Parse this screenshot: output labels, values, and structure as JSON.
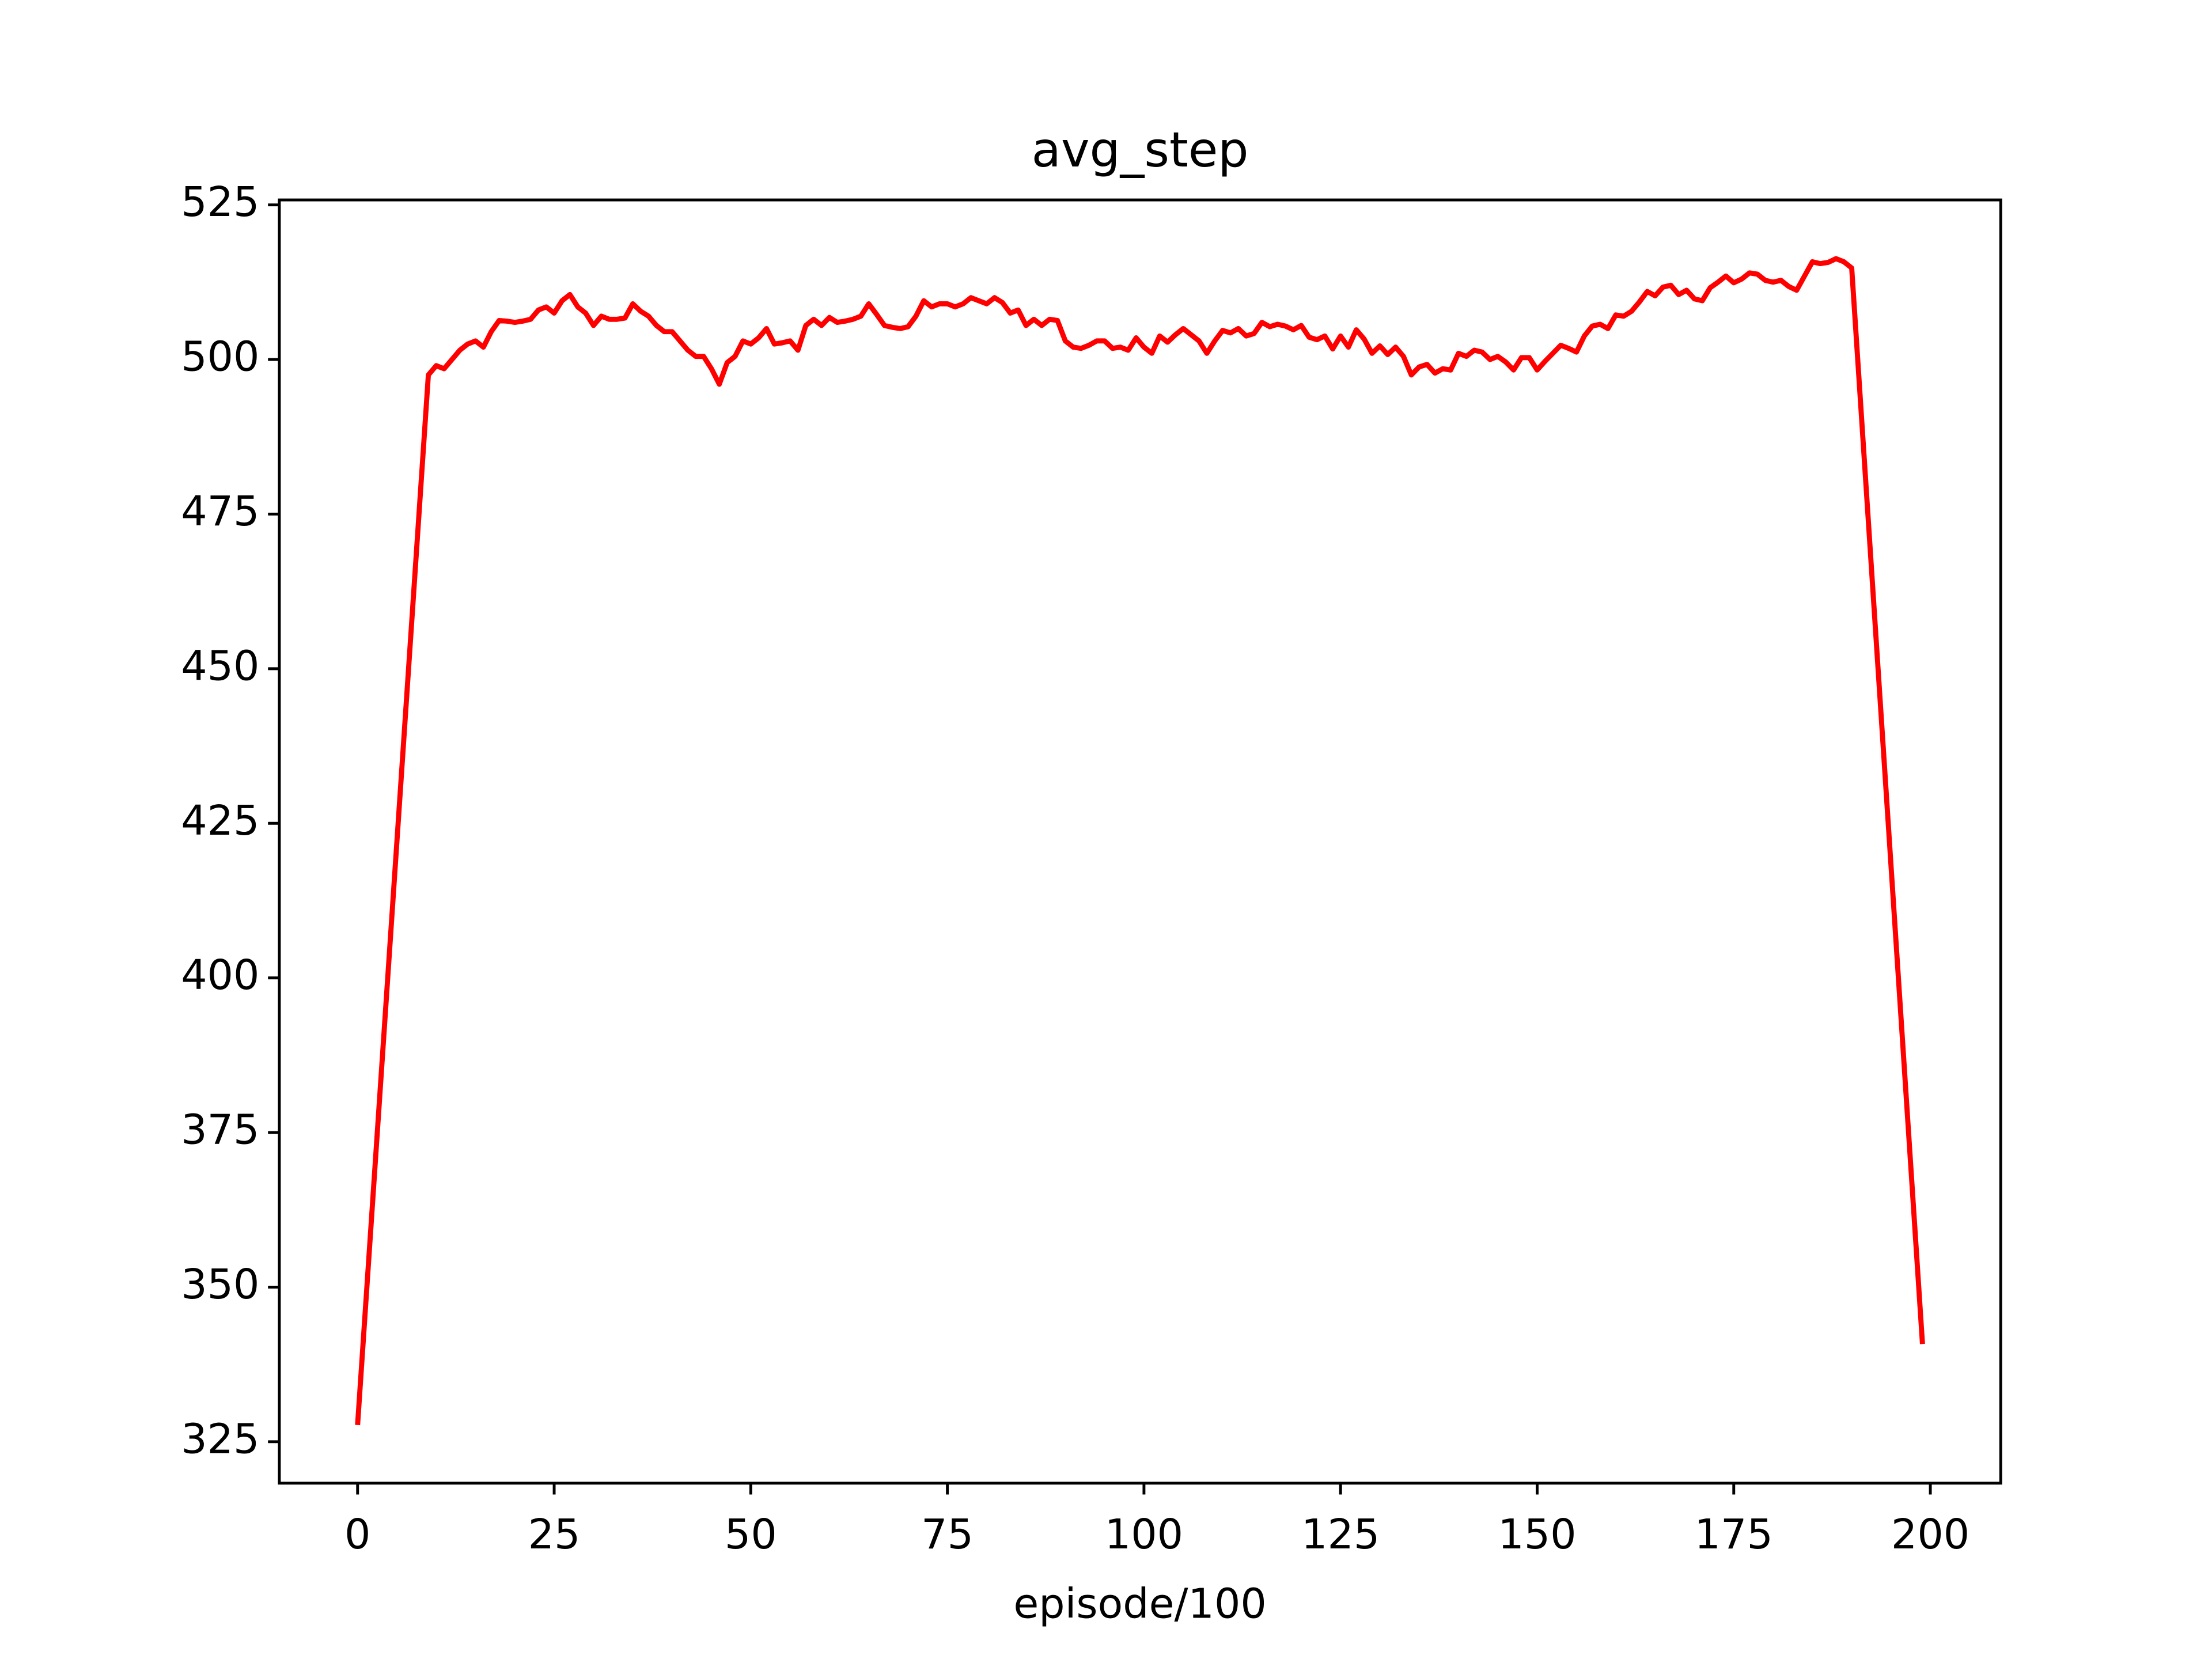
{
  "chart_data": {
    "type": "line",
    "title": "avg_step",
    "x_label": "episode/100",
    "color": "#ff0000",
    "x": [
      0,
      9,
      10,
      11,
      12,
      13,
      14,
      15,
      16,
      17,
      18,
      19,
      20,
      21,
      22,
      23,
      24,
      25,
      26,
      27,
      28,
      29,
      30,
      31,
      32,
      33,
      34,
      35,
      36,
      37,
      38,
      39,
      40,
      41,
      42,
      43,
      44,
      45,
      46,
      47,
      48,
      49,
      50,
      51,
      52,
      53,
      54,
      55,
      56,
      57,
      58,
      59,
      60,
      61,
      62,
      63,
      64,
      65,
      66,
      67,
      68,
      69,
      70,
      71,
      72,
      73,
      74,
      75,
      76,
      77,
      78,
      79,
      80,
      81,
      82,
      83,
      84,
      85,
      86,
      87,
      88,
      89,
      90,
      91,
      92,
      93,
      94,
      95,
      96,
      97,
      98,
      99,
      100,
      101,
      102,
      103,
      104,
      105,
      106,
      107,
      108,
      109,
      110,
      111,
      112,
      113,
      114,
      115,
      116,
      117,
      118,
      119,
      120,
      121,
      122,
      123,
      124,
      125,
      126,
      127,
      128,
      129,
      130,
      131,
      132,
      133,
      134,
      135,
      136,
      137,
      138,
      139,
      140,
      141,
      142,
      143,
      144,
      145,
      146,
      147,
      148,
      149,
      150,
      151,
      152,
      153,
      154,
      155,
      156,
      157,
      158,
      159,
      160,
      161,
      162,
      163,
      164,
      165,
      166,
      167,
      168,
      169,
      170,
      171,
      172,
      173,
      174,
      175,
      176,
      177,
      178,
      179,
      180,
      181,
      182,
      183,
      184,
      185,
      186,
      187,
      188,
      189,
      190,
      199
    ],
    "values": [
      327.7,
      497.5,
      499,
      498.5,
      500,
      501.5,
      502.5,
      503,
      502,
      504.5,
      506.3,
      506.2,
      506,
      506.2,
      506.5,
      508,
      508.5,
      507.5,
      509.5,
      510.5,
      508.5,
      507.5,
      505.5,
      507,
      506.5,
      506.5,
      506.7,
      509,
      507.8,
      507,
      505.5,
      504.5,
      504.5,
      503,
      501.5,
      500.5,
      500.5,
      498.5,
      496,
      499.5,
      500.5,
      503,
      502.5,
      503.5,
      505,
      502.5,
      502.7,
      503,
      501.5,
      505.5,
      506.5,
      505.5,
      506.8,
      506,
      506.2,
      506.5,
      507,
      509,
      507.3,
      505.5,
      505.2,
      505,
      505.3,
      507,
      509.5,
      508.5,
      509,
      509,
      508.5,
      509,
      510,
      509.5,
      509,
      510,
      509.2,
      507.5,
      508,
      505.5,
      506.5,
      505.5,
      506.5,
      506.3,
      503,
      502,
      501.8,
      502.3,
      503,
      503,
      501.8,
      502,
      501.5,
      503.5,
      502,
      501,
      503.8,
      502.8,
      504,
      505,
      504,
      503,
      501,
      503,
      504.7,
      504.3,
      505,
      503.8,
      504.2,
      506,
      505.3,
      505.7,
      505.4,
      504.8,
      505.5,
      503.6,
      503.2,
      503.8,
      501.7,
      503.8,
      502,
      504.8,
      503.3,
      501,
      502.2,
      500.8,
      502,
      500.5,
      497.5,
      498.8,
      499.2,
      497.8,
      498.5,
      498.3,
      501,
      500.5,
      501.5,
      501.2,
      500,
      500.5,
      499.6,
      498.3,
      500.3,
      500.3,
      498.3,
      499.7,
      501,
      502.3,
      501.8,
      501.2,
      503.8,
      505.4,
      505.7,
      505,
      507.2,
      507,
      507.8,
      509.3,
      511,
      510.3,
      511.7,
      512,
      510.5,
      511.2,
      509.8,
      509.5,
      511.6,
      512.5,
      513.5,
      512.4,
      513,
      514,
      513.8,
      512.8,
      512.5,
      512.8,
      511.8,
      511.2,
      513.5,
      515.8,
      515.5,
      515.7,
      516.3,
      515.8,
      514.8,
      340.8
    ],
    "xlim": [
      -9.95,
      208.95
    ],
    "ylim": [
      318.3,
      525.8
    ],
    "xticks": [
      0,
      25,
      50,
      75,
      100,
      125,
      150,
      175,
      200
    ],
    "yticks": [
      325,
      350,
      375,
      400,
      425,
      450,
      475,
      500,
      525
    ]
  }
}
